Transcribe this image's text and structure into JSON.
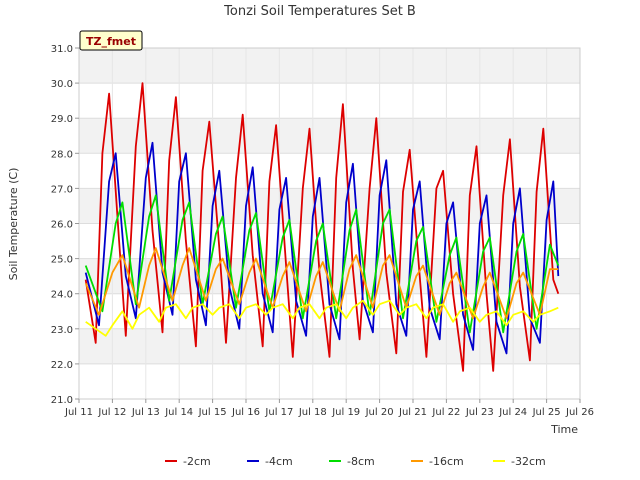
{
  "chart_data": {
    "type": "line",
    "title": "Tonzi Soil Temperatures Set B",
    "xlabel": "Time",
    "ylabel": "Soil Temperature (C)",
    "station_label": "TZ_fmet",
    "xlim": [
      11,
      26
    ],
    "ylim": [
      21.0,
      31.0
    ],
    "x_ticks": [
      11,
      12,
      13,
      14,
      15,
      16,
      17,
      18,
      19,
      20,
      21,
      22,
      23,
      24,
      25,
      26
    ],
    "x_tick_labels": [
      "Jul 11",
      "Jul 12",
      "Jul 13",
      "Jul 14",
      "Jul 15",
      "Jul 16",
      "Jul 17",
      "Jul 18",
      "Jul 19",
      "Jul 20",
      "Jul 21",
      "Jul 22",
      "Jul 23",
      "Jul 24",
      "Jul 25",
      "Jul 26"
    ],
    "y_ticks": [
      21.0,
      22.0,
      23.0,
      24.0,
      25.0,
      26.0,
      27.0,
      28.0,
      29.0,
      30.0,
      31.0
    ],
    "y_tick_labels": [
      "21.0",
      "22.0",
      "23.0",
      "24.0",
      "25.0",
      "26.0",
      "27.0",
      "28.0",
      "29.0",
      "30.0",
      "31.0"
    ],
    "grid": true,
    "legend_position": "bottom",
    "series": [
      {
        "name": "-2cm",
        "color": "#dd0000",
        "x": [
          11.2,
          11.5,
          11.7,
          11.9,
          12.2,
          12.4,
          12.7,
          12.9,
          13.2,
          13.5,
          13.7,
          13.9,
          14.2,
          14.5,
          14.7,
          14.9,
          15.2,
          15.4,
          15.7,
          15.9,
          16.2,
          16.5,
          16.7,
          16.9,
          17.2,
          17.4,
          17.7,
          17.9,
          18.2,
          18.5,
          18.7,
          18.9,
          19.2,
          19.4,
          19.7,
          19.9,
          20.2,
          20.5,
          20.7,
          20.9,
          21.2,
          21.4,
          21.7,
          21.9,
          22.2,
          22.5,
          22.7,
          22.9,
          23.2,
          23.4,
          23.7,
          23.9,
          24.2,
          24.5,
          24.7,
          24.9,
          25.2,
          25.35
        ],
        "y": [
          24.4,
          22.6,
          28.0,
          29.7,
          25.5,
          22.8,
          28.2,
          30.0,
          25.8,
          22.9,
          27.8,
          29.6,
          25.5,
          22.5,
          27.5,
          28.9,
          25.3,
          22.6,
          27.3,
          29.1,
          25.1,
          22.5,
          27.2,
          28.8,
          24.8,
          22.2,
          27.0,
          28.7,
          24.6,
          22.2,
          27.3,
          29.4,
          24.7,
          22.7,
          27.0,
          29.0,
          24.6,
          22.3,
          26.9,
          28.1,
          24.5,
          22.2,
          27.0,
          27.5,
          24.0,
          21.8,
          26.8,
          28.2,
          24.0,
          21.8,
          26.8,
          28.4,
          24.2,
          22.1,
          26.9,
          28.7,
          24.4,
          24.0
        ]
      },
      {
        "name": "-4cm",
        "color": "#0000cc",
        "x": [
          11.2,
          11.6,
          11.9,
          12.1,
          12.4,
          12.7,
          13.0,
          13.2,
          13.5,
          13.8,
          14.0,
          14.2,
          14.5,
          14.8,
          15.0,
          15.2,
          15.5,
          15.8,
          16.0,
          16.2,
          16.5,
          16.8,
          17.0,
          17.2,
          17.5,
          17.8,
          18.0,
          18.2,
          18.5,
          18.8,
          19.0,
          19.2,
          19.5,
          19.8,
          20.0,
          20.2,
          20.5,
          20.8,
          21.0,
          21.2,
          21.5,
          21.8,
          22.0,
          22.2,
          22.5,
          22.8,
          23.0,
          23.2,
          23.5,
          23.8,
          24.0,
          24.2,
          24.5,
          24.8,
          25.0,
          25.2,
          25.35
        ],
        "y": [
          24.6,
          23.1,
          27.2,
          28.0,
          24.5,
          23.3,
          27.3,
          28.3,
          24.6,
          23.4,
          27.2,
          28.0,
          24.4,
          23.1,
          26.5,
          27.5,
          24.2,
          23.0,
          26.5,
          27.6,
          24.0,
          22.9,
          26.4,
          27.3,
          23.8,
          22.8,
          26.2,
          27.3,
          23.7,
          22.7,
          26.6,
          27.7,
          23.8,
          22.9,
          26.8,
          27.8,
          23.7,
          22.8,
          26.4,
          27.2,
          23.6,
          22.7,
          26.0,
          26.6,
          23.4,
          22.4,
          26.0,
          26.8,
          23.2,
          22.3,
          26.0,
          27.0,
          23.3,
          22.6,
          26.1,
          27.2,
          24.5
        ]
      },
      {
        "name": "-8cm",
        "color": "#00dd00",
        "x": [
          11.2,
          11.7,
          12.1,
          12.3,
          12.7,
          13.1,
          13.3,
          13.7,
          14.1,
          14.3,
          14.7,
          15.1,
          15.3,
          15.7,
          16.1,
          16.3,
          16.7,
          17.1,
          17.3,
          17.7,
          18.1,
          18.3,
          18.7,
          19.1,
          19.3,
          19.7,
          20.1,
          20.3,
          20.7,
          21.1,
          21.3,
          21.7,
          22.1,
          22.3,
          22.7,
          23.1,
          23.3,
          23.7,
          24.1,
          24.3,
          24.7,
          25.1,
          25.35
        ],
        "y": [
          24.8,
          23.5,
          26.0,
          26.6,
          23.7,
          26.2,
          26.8,
          23.8,
          26.1,
          26.6,
          23.7,
          25.7,
          26.2,
          23.6,
          25.8,
          26.3,
          23.5,
          25.6,
          26.1,
          23.3,
          25.5,
          26.0,
          23.3,
          25.8,
          26.4,
          23.4,
          26.0,
          26.4,
          23.3,
          25.5,
          25.9,
          23.2,
          25.1,
          25.6,
          22.9,
          25.2,
          25.6,
          22.9,
          25.2,
          25.7,
          23.0,
          25.4,
          24.8
        ]
      },
      {
        "name": "-16cm",
        "color": "#ff9900",
        "x": [
          11.2,
          11.6,
          12.0,
          12.3,
          12.8,
          13.1,
          13.3,
          13.8,
          14.1,
          14.3,
          14.8,
          15.1,
          15.3,
          15.8,
          16.1,
          16.3,
          16.8,
          17.1,
          17.3,
          17.8,
          18.1,
          18.3,
          18.8,
          19.1,
          19.3,
          19.8,
          20.1,
          20.3,
          20.8,
          21.1,
          21.3,
          21.8,
          22.1,
          22.3,
          22.8,
          23.1,
          23.3,
          23.8,
          24.1,
          24.3,
          24.8,
          25.1,
          25.35
        ],
        "y": [
          24.3,
          23.4,
          24.6,
          25.1,
          23.6,
          24.8,
          25.3,
          23.8,
          24.8,
          25.3,
          23.8,
          24.7,
          25.0,
          23.7,
          24.6,
          25.0,
          23.6,
          24.5,
          24.9,
          23.5,
          24.5,
          24.9,
          23.5,
          24.7,
          25.1,
          23.6,
          24.8,
          25.1,
          23.6,
          24.5,
          24.8,
          23.4,
          24.3,
          24.6,
          23.3,
          24.2,
          24.6,
          23.3,
          24.3,
          24.6,
          23.4,
          24.7,
          24.7
        ]
      },
      {
        "name": "-32cm",
        "color": "#ffff00",
        "x": [
          11.2,
          11.5,
          11.8,
          12.0,
          12.3,
          12.6,
          12.8,
          13.1,
          13.4,
          13.6,
          13.9,
          14.2,
          14.4,
          14.7,
          15.0,
          15.2,
          15.5,
          15.8,
          16.0,
          16.3,
          16.6,
          16.8,
          17.1,
          17.4,
          17.6,
          17.9,
          18.2,
          18.4,
          18.7,
          19.0,
          19.2,
          19.5,
          19.8,
          20.0,
          20.3,
          20.6,
          20.8,
          21.1,
          21.4,
          21.6,
          21.9,
          22.2,
          22.4,
          22.7,
          23.0,
          23.2,
          23.5,
          23.8,
          24.0,
          24.3,
          24.6,
          24.8,
          25.1,
          25.35
        ],
        "y": [
          23.2,
          23.0,
          22.8,
          23.1,
          23.5,
          23.0,
          23.4,
          23.6,
          23.2,
          23.6,
          23.7,
          23.3,
          23.6,
          23.7,
          23.4,
          23.6,
          23.7,
          23.3,
          23.6,
          23.7,
          23.4,
          23.6,
          23.7,
          23.3,
          23.6,
          23.7,
          23.3,
          23.6,
          23.7,
          23.3,
          23.6,
          23.8,
          23.4,
          23.7,
          23.8,
          23.4,
          23.6,
          23.7,
          23.3,
          23.6,
          23.7,
          23.2,
          23.5,
          23.6,
          23.2,
          23.4,
          23.5,
          23.1,
          23.4,
          23.5,
          23.2,
          23.4,
          23.5,
          23.6
        ]
      }
    ]
  }
}
